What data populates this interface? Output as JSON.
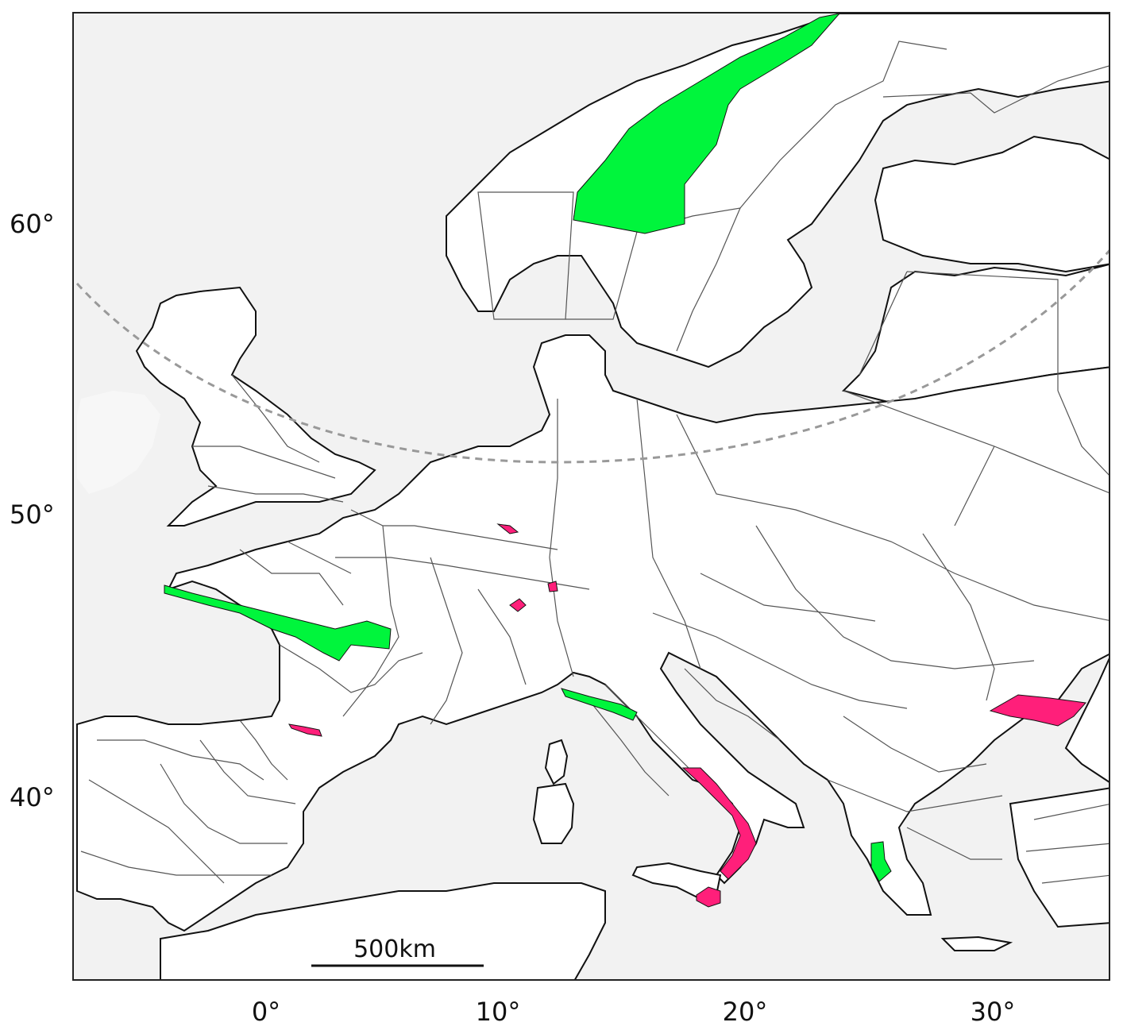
{
  "map": {
    "latitude_labels": [
      "60°",
      "50°",
      "40°"
    ],
    "longitude_labels": [
      "0°",
      "10°",
      "20°",
      "30°"
    ],
    "scale_bar_label": "500km",
    "colors": {
      "sea": "#f2f2f2",
      "land": "#ffffff",
      "coast": "#111111",
      "region_border": "#555555",
      "highlight_green": "#00f53c",
      "highlight_pink": "#ff1f7a",
      "dashed_circle": "#999999"
    },
    "highlighted_regions": [
      {
        "name": "Scandinavian mountains",
        "color": "green"
      },
      {
        "name": "Western France coast",
        "color": "green"
      },
      {
        "name": "Northern Apennines",
        "color": "green"
      },
      {
        "name": "Western Greece",
        "color": "green"
      },
      {
        "name": "Southern Italy (Calabria)",
        "color": "pink"
      },
      {
        "name": "Sicily (north-east)",
        "color": "pink"
      },
      {
        "name": "Moldova region",
        "color": "pink"
      },
      {
        "name": "Pyrenees",
        "color": "pink"
      },
      {
        "name": "Alpine regions",
        "color": "pink"
      }
    ]
  }
}
